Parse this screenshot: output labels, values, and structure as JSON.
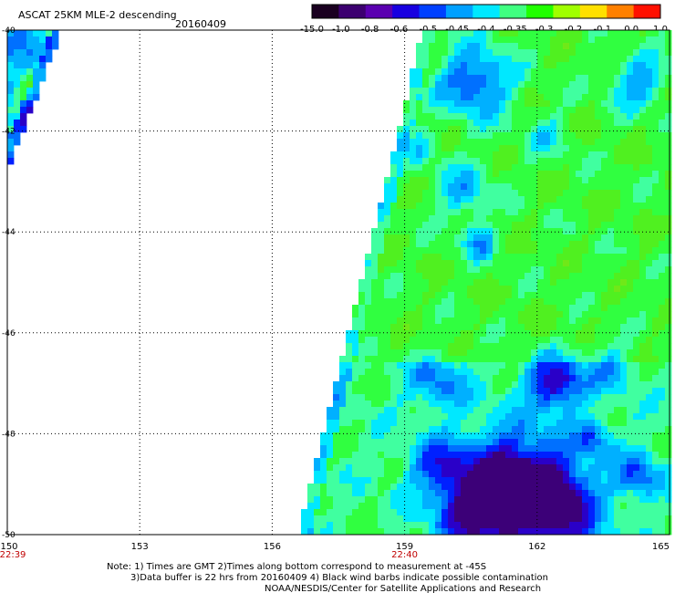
{
  "header": {
    "title": "ASCAT 25KM MLE-2 descending",
    "date": "20160409"
  },
  "colorbar": {
    "labels": [
      "-15.0",
      "-1.0",
      "-0.8",
      "-0.6",
      "-0.5",
      "-0.45",
      "-0.4",
      "-0.35",
      "-0.3",
      "-0.2",
      "-0.1",
      "0.0",
      "1.0"
    ],
    "colors": [
      "#1a0020",
      "#3c0070",
      "#5a00b0",
      "#1800e0",
      "#0040ff",
      "#00a0ff",
      "#00e8ff",
      "#40ff80",
      "#20ff00",
      "#a0ff00",
      "#ffe000",
      "#ff8000",
      "#ff1000"
    ]
  },
  "axes": {
    "lat_labels": [
      "-40",
      "-42",
      "-44",
      "-46",
      "-48",
      "-50"
    ],
    "lon_labels": [
      "150",
      "153",
      "156",
      "159",
      "162",
      "165"
    ],
    "lat_range": [
      -50,
      -40
    ],
    "lon_range": [
      150,
      165
    ]
  },
  "time_labels": [
    {
      "text": "22:39",
      "lon": 150
    },
    {
      "text": "22:40",
      "lon": 159
    }
  ],
  "notes": {
    "line1": "Note: 1) Times are GMT 2)Times along bottom correspond to measurement at -45S",
    "line2": "3)Data buffer is 22 hrs from 20160409 4) Black wind barbs indicate possible contamination",
    "line3": "NOAA/NESDIS/Center for Satellite Applications and Research"
  }
}
